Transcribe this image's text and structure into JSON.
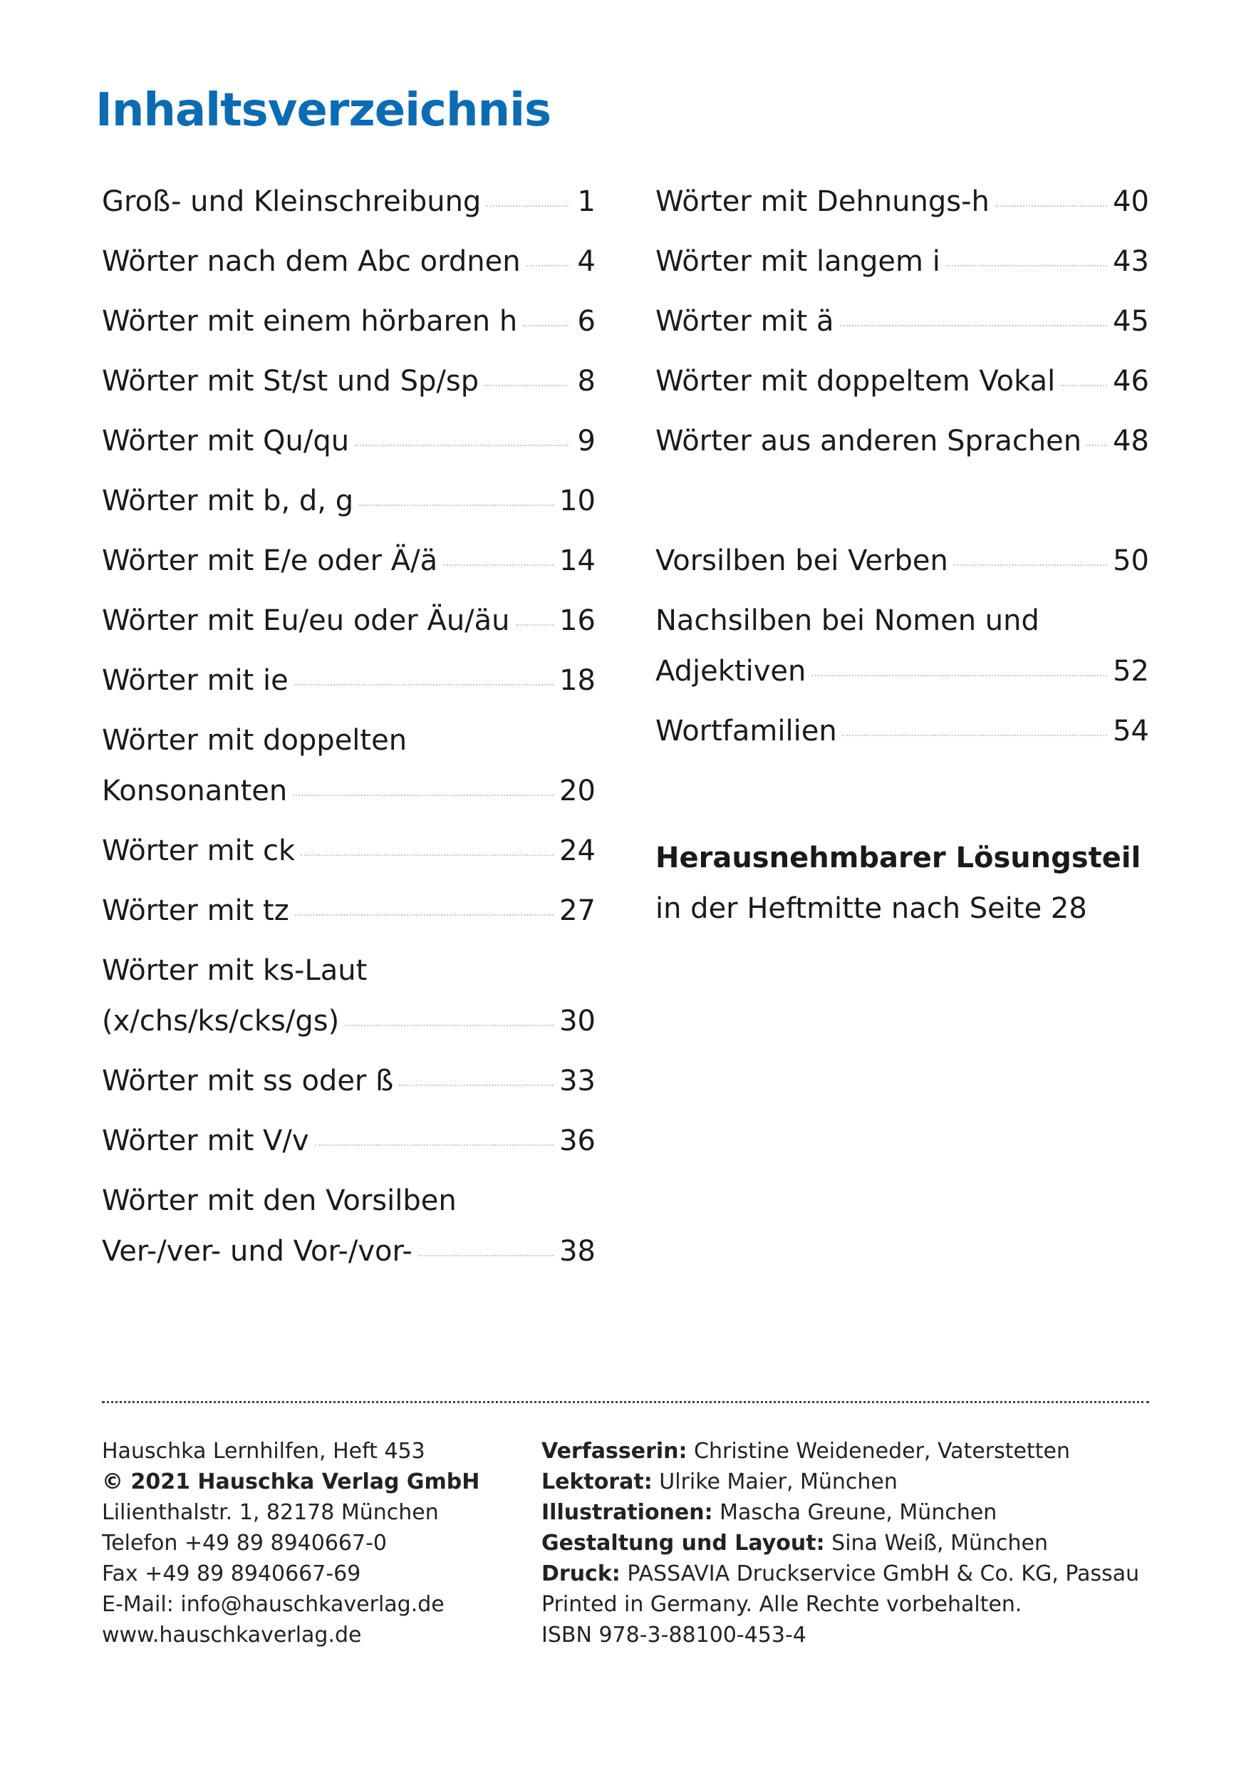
{
  "title": "Inhaltsverzeichnis",
  "left_entries": [
    {
      "lines": [
        "Groß- und Kleinschreibung"
      ],
      "page": "1"
    },
    {
      "lines": [
        "Wörter nach dem Abc ordnen"
      ],
      "page": "4"
    },
    {
      "lines": [
        "Wörter mit einem hörbaren h"
      ],
      "page": "6"
    },
    {
      "lines": [
        "Wörter mit St/st und Sp/sp"
      ],
      "page": "8"
    },
    {
      "lines": [
        "Wörter mit Qu/qu"
      ],
      "page": "9"
    },
    {
      "lines": [
        "Wörter mit b, d, g"
      ],
      "page": "10"
    },
    {
      "lines": [
        "Wörter mit E/e oder Ä/ä"
      ],
      "page": "14"
    },
    {
      "lines": [
        "Wörter mit Eu/eu oder Äu/äu"
      ],
      "page": "16"
    },
    {
      "lines": [
        "Wörter mit ie"
      ],
      "page": "18"
    },
    {
      "lines": [
        "Wörter mit doppelten",
        "Konsonanten"
      ],
      "page": "20"
    },
    {
      "lines": [
        "Wörter mit ck"
      ],
      "page": "24"
    },
    {
      "lines": [
        "Wörter mit tz"
      ],
      "page": "27"
    },
    {
      "lines": [
        "Wörter mit ks-Laut",
        "(x/chs/ks/cks/gs)"
      ],
      "page": "30"
    },
    {
      "lines": [
        "Wörter mit ss oder ß"
      ],
      "page": "33"
    },
    {
      "lines": [
        "Wörter mit V/v"
      ],
      "page": "36"
    },
    {
      "lines": [
        "Wörter mit den Vorsilben",
        "Ver-/ver- und Vor-/vor-"
      ],
      "page": "38"
    }
  ],
  "right_entries_a": [
    {
      "lines": [
        "Wörter mit Dehnungs-h"
      ],
      "page": "40"
    },
    {
      "lines": [
        "Wörter mit langem i"
      ],
      "page": "43"
    },
    {
      "lines": [
        "Wörter mit ä"
      ],
      "page": "45"
    },
    {
      "lines": [
        "Wörter mit doppeltem Vokal"
      ],
      "page": "46"
    },
    {
      "lines": [
        "Wörter aus anderen Sprachen"
      ],
      "page": "48"
    }
  ],
  "right_entries_b": [
    {
      "lines": [
        "Vorsilben bei Verben"
      ],
      "page": "50"
    },
    {
      "lines": [
        "Nachsilben bei Nomen und",
        "Adjektiven"
      ],
      "page": "52"
    },
    {
      "lines": [
        "Wortfamilien"
      ],
      "page": "54"
    }
  ],
  "note": {
    "heading": "Herausnehmbarer Lösungsteil",
    "text": "in der Heftmitte nach Seite 28"
  },
  "footer_left": [
    {
      "text": "Hauschka Lernhilfen, Heft 453",
      "bold": false
    },
    {
      "text": "© 2021 Hauschka Verlag GmbH",
      "bold": true
    },
    {
      "text": "Lilienthalstr. 1, 82178 München",
      "bold": false
    },
    {
      "text": "Telefon +49 89 8940667-0",
      "bold": false
    },
    {
      "text": "Fax +49 89 8940667-69",
      "bold": false
    },
    {
      "text": "E-Mail: info@hauschkaverlag.de",
      "bold": false
    },
    {
      "text": "www.hauschkaverlag.de",
      "bold": false
    }
  ],
  "footer_right": [
    {
      "label": "Verfasserin:",
      "text": " Christine Weideneder, Vaterstetten"
    },
    {
      "label": "Lektorat:",
      "text": " Ulrike Maier, München"
    },
    {
      "label": "Illustrationen:",
      "text": " Mascha Greune, München"
    },
    {
      "label": "Gestaltung und Layout:",
      "text": " Sina Weiß, München"
    },
    {
      "label": "Druck:",
      "text": " PASSAVIA Druckservice GmbH & Co. KG, Passau"
    },
    {
      "label": "",
      "text": "Printed in Germany. Alle Rechte vorbehalten."
    },
    {
      "label": "",
      "text": "ISBN 978-3-88100-453-4"
    }
  ],
  "colors": {
    "title": "#0b6cb3",
    "text": "#1a1a1a"
  }
}
